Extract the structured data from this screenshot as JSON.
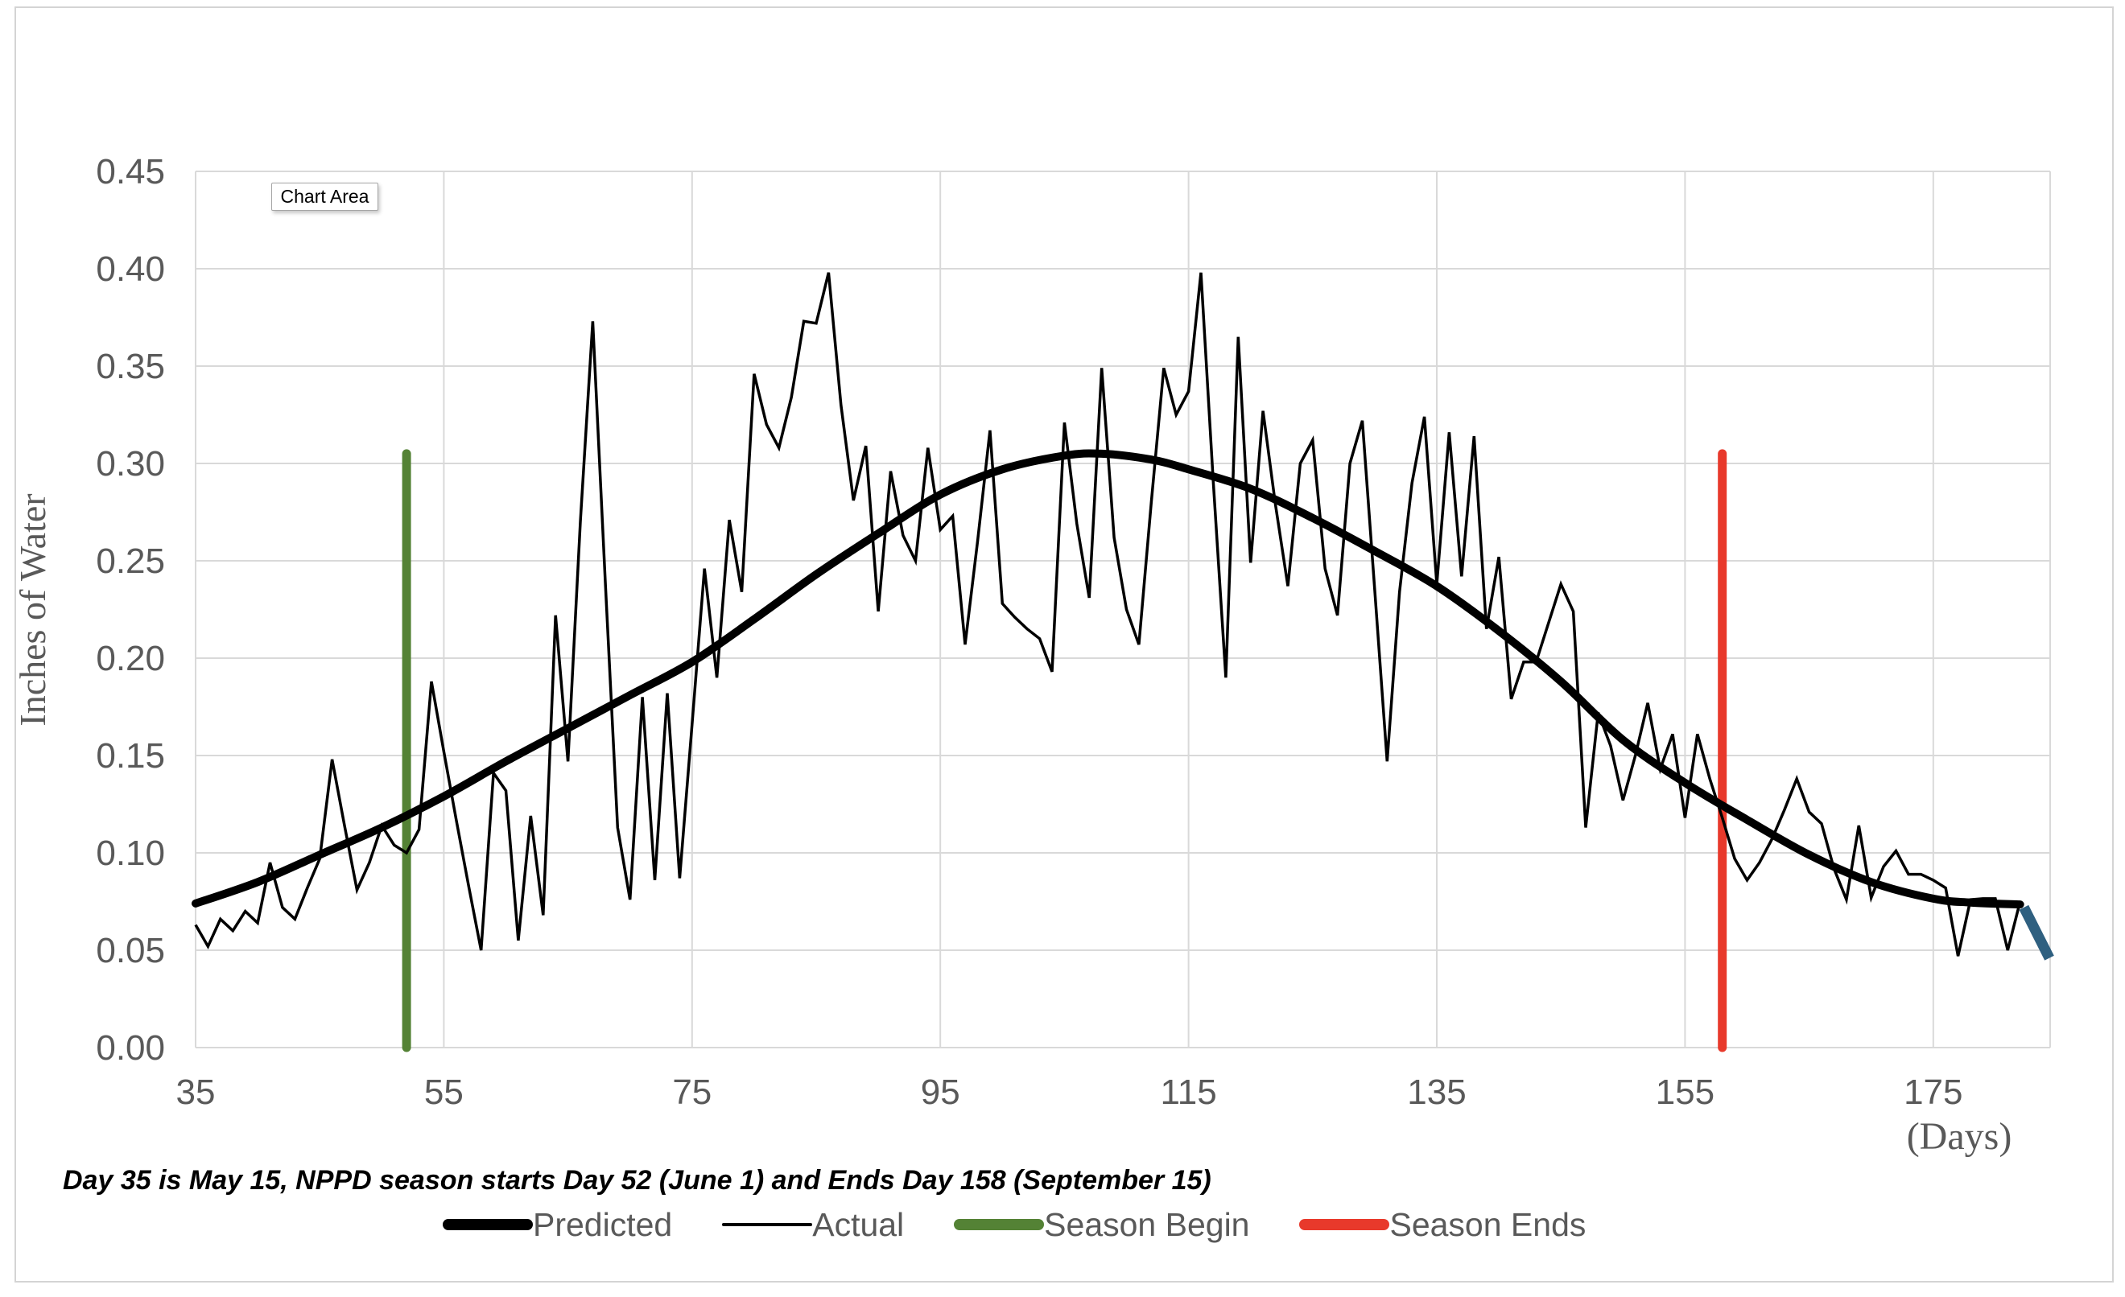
{
  "tooltip": {
    "label": "Chart Area"
  },
  "annotation": {
    "text": "Day 35 is May 15, NPPD season starts Day 52 (June 1) and Ends Day 158 (September 15)"
  },
  "axes": {
    "y_title": "Inches of Water",
    "x_title": "(Days)",
    "y_ticks": [
      0,
      0.05,
      0.1,
      0.15,
      0.2,
      0.25,
      0.3,
      0.35,
      0.4,
      0.45
    ],
    "y_tick_labels": [
      "0.00",
      "0.05",
      "0.10",
      "0.15",
      "0.20",
      "0.25",
      "0.30",
      "0.35",
      "0.40",
      "0.45"
    ],
    "x_ticks": [
      35,
      55,
      75,
      95,
      115,
      135,
      155,
      175
    ],
    "x_tick_labels": [
      "35",
      "55",
      "75",
      "95",
      "115",
      "135",
      "155",
      "175"
    ],
    "x_min": 35,
    "x_max": 184.4,
    "y_min": 0,
    "y_max": 0.45,
    "tick_color": "#595959",
    "grid_color": "#d9d9d9",
    "title_color": "#595959"
  },
  "legend": {
    "items": [
      {
        "id": "predicted",
        "label": "Predicted",
        "color": "#000000",
        "thickness": 14
      },
      {
        "id": "actual",
        "label": "Actual",
        "color": "#000000",
        "thickness": 4
      },
      {
        "id": "season-begin",
        "label": "Season Begin",
        "color": "#548235",
        "thickness": 14
      },
      {
        "id": "season-ends",
        "label": "Season Ends",
        "color": "#e8392b",
        "thickness": 14
      }
    ]
  },
  "chart_data": {
    "type": "line",
    "title": "",
    "xlabel": "(Days)",
    "ylabel": "Inches of Water",
    "xlim": [
      35,
      184.4
    ],
    "ylim": [
      0,
      0.45
    ],
    "grid": true,
    "legend_position": "bottom",
    "series": [
      {
        "name": "Predicted",
        "color": "#000000",
        "width": 10,
        "smooth": true,
        "cap": "round",
        "points": [
          [
            35,
            0.074
          ],
          [
            40,
            0.085
          ],
          [
            45,
            0.099
          ],
          [
            50,
            0.113
          ],
          [
            55,
            0.129
          ],
          [
            60,
            0.147
          ],
          [
            65,
            0.164
          ],
          [
            70,
            0.181
          ],
          [
            75,
            0.198
          ],
          [
            80,
            0.22
          ],
          [
            85,
            0.243
          ],
          [
            90,
            0.264
          ],
          [
            95,
            0.284
          ],
          [
            100,
            0.297
          ],
          [
            105,
            0.304
          ],
          [
            108,
            0.305
          ],
          [
            112,
            0.302
          ],
          [
            115,
            0.297
          ],
          [
            120,
            0.287
          ],
          [
            125,
            0.272
          ],
          [
            130,
            0.255
          ],
          [
            135,
            0.237
          ],
          [
            140,
            0.214
          ],
          [
            145,
            0.188
          ],
          [
            150,
            0.158
          ],
          [
            155,
            0.136
          ],
          [
            160,
            0.117
          ],
          [
            165,
            0.099
          ],
          [
            170,
            0.085
          ],
          [
            175,
            0.0765
          ],
          [
            178,
            0.0745
          ],
          [
            182,
            0.0735
          ]
        ]
      },
      {
        "name": "Actual",
        "color": "#000000",
        "width": 3.5,
        "smooth": false,
        "cap": "butt",
        "points": [
          [
            35,
            0.063
          ],
          [
            36,
            0.052
          ],
          [
            37,
            0.066
          ],
          [
            38,
            0.06
          ],
          [
            39,
            0.07
          ],
          [
            40,
            0.064
          ],
          [
            41,
            0.095
          ],
          [
            42,
            0.072
          ],
          [
            43,
            0.066
          ],
          [
            44,
            0.082
          ],
          [
            45,
            0.097
          ],
          [
            46,
            0.148
          ],
          [
            47,
            0.114
          ],
          [
            48,
            0.081
          ],
          [
            49,
            0.095
          ],
          [
            50,
            0.114
          ],
          [
            51,
            0.104
          ],
          [
            52,
            0.1
          ],
          [
            53,
            0.112
          ],
          [
            54,
            0.188
          ],
          [
            55,
            0.152
          ],
          [
            56,
            0.117
          ],
          [
            57,
            0.083
          ],
          [
            58,
            0.05
          ],
          [
            59,
            0.141
          ],
          [
            60,
            0.132
          ],
          [
            61,
            0.055
          ],
          [
            62,
            0.119
          ],
          [
            63,
            0.068
          ],
          [
            64,
            0.222
          ],
          [
            65,
            0.147
          ],
          [
            66,
            0.27
          ],
          [
            67,
            0.373
          ],
          [
            68,
            0.24
          ],
          [
            69,
            0.113
          ],
          [
            70,
            0.076
          ],
          [
            71,
            0.18
          ],
          [
            72,
            0.086
          ],
          [
            73,
            0.182
          ],
          [
            74,
            0.087
          ],
          [
            75,
            0.166
          ],
          [
            76,
            0.246
          ],
          [
            77,
            0.19
          ],
          [
            78,
            0.271
          ],
          [
            79,
            0.234
          ],
          [
            80,
            0.346
          ],
          [
            81,
            0.32
          ],
          [
            82,
            0.308
          ],
          [
            83,
            0.334
          ],
          [
            84,
            0.373
          ],
          [
            85,
            0.372
          ],
          [
            86,
            0.398
          ],
          [
            87,
            0.33
          ],
          [
            88,
            0.281
          ],
          [
            89,
            0.309
          ],
          [
            90,
            0.224
          ],
          [
            91,
            0.296
          ],
          [
            92,
            0.263
          ],
          [
            93,
            0.25
          ],
          [
            94,
            0.308
          ],
          [
            95,
            0.266
          ],
          [
            96,
            0.273
          ],
          [
            97,
            0.207
          ],
          [
            98,
            0.26
          ],
          [
            99,
            0.317
          ],
          [
            100,
            0.228
          ],
          [
            101,
            0.221
          ],
          [
            102,
            0.215
          ],
          [
            103,
            0.21
          ],
          [
            104,
            0.193
          ],
          [
            105,
            0.321
          ],
          [
            106,
            0.269
          ],
          [
            107,
            0.231
          ],
          [
            108,
            0.349
          ],
          [
            109,
            0.262
          ],
          [
            110,
            0.225
          ],
          [
            111,
            0.207
          ],
          [
            112,
            0.28
          ],
          [
            113,
            0.349
          ],
          [
            114,
            0.325
          ],
          [
            115,
            0.337
          ],
          [
            116,
            0.398
          ],
          [
            117,
            0.29
          ],
          [
            118,
            0.19
          ],
          [
            119,
            0.365
          ],
          [
            120,
            0.249
          ],
          [
            121,
            0.327
          ],
          [
            122,
            0.279
          ],
          [
            123,
            0.237
          ],
          [
            124,
            0.3
          ],
          [
            125,
            0.312
          ],
          [
            126,
            0.246
          ],
          [
            127,
            0.222
          ],
          [
            128,
            0.3
          ],
          [
            129,
            0.322
          ],
          [
            130,
            0.235
          ],
          [
            131,
            0.147
          ],
          [
            132,
            0.234
          ],
          [
            133,
            0.29
          ],
          [
            134,
            0.324
          ],
          [
            135,
            0.238
          ],
          [
            136,
            0.316
          ],
          [
            137,
            0.242
          ],
          [
            138,
            0.314
          ],
          [
            139,
            0.215
          ],
          [
            140,
            0.252
          ],
          [
            141,
            0.179
          ],
          [
            142,
            0.198
          ],
          [
            143,
            0.198
          ],
          [
            144,
            0.218
          ],
          [
            145,
            0.238
          ],
          [
            146,
            0.224
          ],
          [
            147,
            0.113
          ],
          [
            148,
            0.172
          ],
          [
            149,
            0.155
          ],
          [
            150,
            0.127
          ],
          [
            151,
            0.15
          ],
          [
            152,
            0.177
          ],
          [
            153,
            0.143
          ],
          [
            154,
            0.161
          ],
          [
            155,
            0.118
          ],
          [
            156,
            0.161
          ],
          [
            157,
            0.138
          ],
          [
            158,
            0.118
          ],
          [
            159,
            0.097
          ],
          [
            160,
            0.086
          ],
          [
            161,
            0.095
          ],
          [
            162,
            0.107
          ],
          [
            163,
            0.122
          ],
          [
            164,
            0.138
          ],
          [
            165,
            0.121
          ],
          [
            166,
            0.115
          ],
          [
            167,
            0.092
          ],
          [
            168,
            0.076
          ],
          [
            169,
            0.114
          ],
          [
            170,
            0.077
          ],
          [
            171,
            0.093
          ],
          [
            172,
            0.101
          ],
          [
            173,
            0.089
          ],
          [
            174,
            0.089
          ],
          [
            175,
            0.086
          ],
          [
            176,
            0.082
          ],
          [
            177,
            0.047
          ],
          [
            178,
            0.076
          ],
          [
            179,
            0.0765
          ],
          [
            180,
            0.0765
          ],
          [
            181,
            0.05
          ],
          [
            182,
            0.075
          ]
        ]
      },
      {
        "name": "Season Begin",
        "color": "#548235",
        "width": 11,
        "smooth": false,
        "cap": "round",
        "points": [
          [
            52,
            0.0
          ],
          [
            52,
            0.305
          ]
        ]
      },
      {
        "name": "Season Ends",
        "color": "#e8392b",
        "width": 11,
        "smooth": false,
        "cap": "round",
        "points": [
          [
            158,
            0.0
          ],
          [
            158,
            0.305
          ]
        ]
      },
      {
        "name": "Forecast Tail",
        "color": "#2f6080",
        "width": 13,
        "smooth": false,
        "cap": "butt",
        "points": [
          [
            182.3,
            0.072
          ],
          [
            184.35,
            0.046
          ]
        ]
      }
    ]
  }
}
